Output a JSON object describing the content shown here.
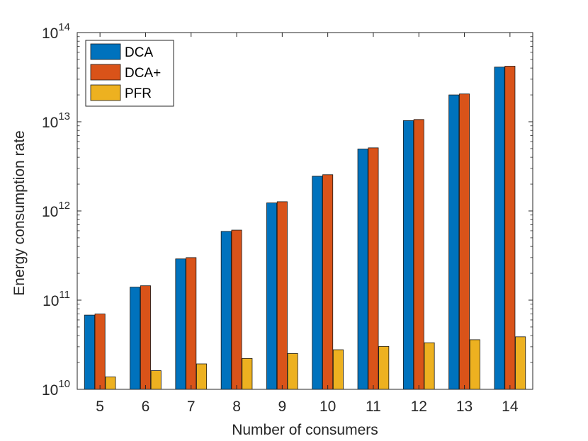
{
  "chart_data": {
    "type": "bar",
    "y_scale": "log",
    "xlabel": "Number of consumers",
    "ylabel": "Energy consumption rate",
    "categories": [
      "5",
      "6",
      "7",
      "8",
      "9",
      "10",
      "11",
      "12",
      "13",
      "14"
    ],
    "ylim": [
      10000000000.0,
      100000000000000.0
    ],
    "y_ticks": [
      {
        "base": "10",
        "exp": "10",
        "value": 10000000000.0
      },
      {
        "base": "10",
        "exp": "11",
        "value": 100000000000.0
      },
      {
        "base": "10",
        "exp": "12",
        "value": 1000000000000.0
      },
      {
        "base": "10",
        "exp": "13",
        "value": 10000000000000.0
      },
      {
        "base": "10",
        "exp": "14",
        "value": 100000000000000.0
      }
    ],
    "legend_position": "top-left",
    "series": [
      {
        "name": "DCA",
        "color": "#0072BD",
        "values": [
          68000000000.0,
          140000000000.0,
          290000000000.0,
          590000000000.0,
          1230000000000.0,
          2450000000000.0,
          4950000000000.0,
          10300000000000.0,
          20000000000000.0,
          41000000000000.0
        ]
      },
      {
        "name": "DCA+",
        "color": "#D95319",
        "values": [
          70000000000.0,
          145000000000.0,
          300000000000.0,
          610000000000.0,
          1270000000000.0,
          2550000000000.0,
          5100000000000.0,
          10600000000000.0,
          20500000000000.0,
          42000000000000.0
        ]
      },
      {
        "name": "PFR",
        "color": "#EDB120",
        "values": [
          13800000000.0,
          16200000000.0,
          19300000000.0,
          22200000000.0,
          25200000000.0,
          27800000000.0,
          30300000000.0,
          33300000000.0,
          36000000000.0,
          38800000000.0
        ]
      }
    ]
  }
}
